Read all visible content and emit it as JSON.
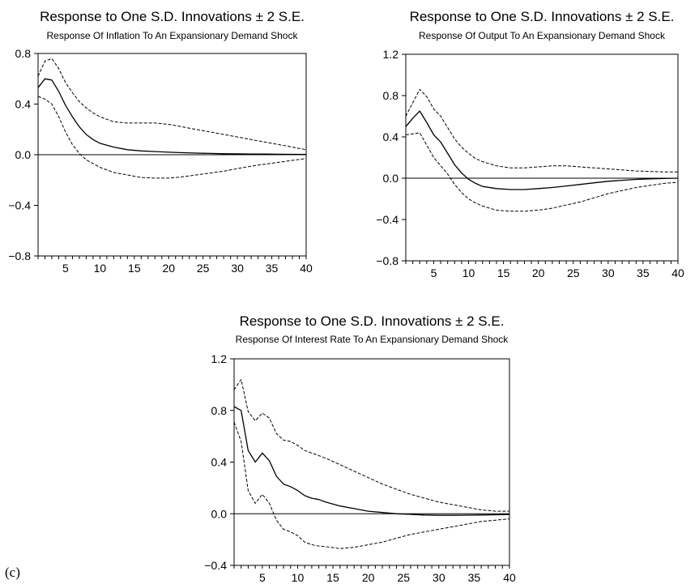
{
  "figure_label": "(c)",
  "chart_data": [
    {
      "type": "line",
      "title": "Response to One S.D. Innovations ± 2 S.E.",
      "subtitle": "Response Of Inflation To An Expansionary Demand Shock",
      "xlim": [
        1,
        40
      ],
      "ylim": [
        -0.8,
        0.8
      ],
      "x_ticks": [
        5,
        10,
        15,
        20,
        25,
        30,
        35,
        40
      ],
      "y_ticks": [
        -0.8,
        -0.4,
        0.0,
        0.4,
        0.8
      ],
      "y_tick_labels": [
        "−0.8",
        "−0.4",
        "0.0",
        "0.4",
        "0.8"
      ],
      "zero_line": true,
      "x": [
        1,
        2,
        3,
        4,
        5,
        6,
        7,
        8,
        9,
        10,
        12,
        14,
        16,
        18,
        20,
        22,
        24,
        26,
        28,
        30,
        32,
        34,
        36,
        38,
        40
      ],
      "series": [
        {
          "style": "dashed",
          "values": [
            0.62,
            0.74,
            0.76,
            0.68,
            0.57,
            0.49,
            0.42,
            0.37,
            0.33,
            0.3,
            0.26,
            0.25,
            0.25,
            0.25,
            0.24,
            0.22,
            0.2,
            0.18,
            0.16,
            0.14,
            0.12,
            0.1,
            0.08,
            0.06,
            0.04
          ]
        },
        {
          "style": "solid",
          "values": [
            0.53,
            0.6,
            0.59,
            0.5,
            0.39,
            0.3,
            0.22,
            0.16,
            0.12,
            0.09,
            0.06,
            0.04,
            0.03,
            0.025,
            0.02,
            0.016,
            0.013,
            0.01,
            0.008,
            0.007,
            0.006,
            0.005,
            0.004,
            0.003,
            0.002
          ]
        },
        {
          "style": "dashed",
          "values": [
            0.46,
            0.44,
            0.4,
            0.3,
            0.18,
            0.08,
            0.01,
            -0.04,
            -0.07,
            -0.1,
            -0.14,
            -0.16,
            -0.18,
            -0.185,
            -0.185,
            -0.175,
            -0.16,
            -0.145,
            -0.13,
            -0.11,
            -0.09,
            -0.075,
            -0.06,
            -0.045,
            -0.03
          ]
        }
      ]
    },
    {
      "type": "line",
      "title": "Response to One S.D. Innovations ± 2 S.E.",
      "subtitle": "Response Of Output To An Expansionary Demand Shock",
      "xlim": [
        1,
        40
      ],
      "ylim": [
        -0.8,
        1.2
      ],
      "x_ticks": [
        5,
        10,
        15,
        20,
        25,
        30,
        35,
        40
      ],
      "y_ticks": [
        -0.8,
        -0.4,
        0.0,
        0.4,
        0.8,
        1.2
      ],
      "y_tick_labels": [
        "−0.8",
        "−0.4",
        "0.0",
        "0.4",
        "0.8",
        "1.2"
      ],
      "zero_line": true,
      "x": [
        1,
        2,
        3,
        4,
        5,
        6,
        7,
        8,
        9,
        10,
        11,
        12,
        14,
        16,
        18,
        20,
        22,
        24,
        26,
        28,
        30,
        32,
        34,
        36,
        38,
        40
      ],
      "series": [
        {
          "style": "dashed",
          "values": [
            0.6,
            0.73,
            0.86,
            0.79,
            0.67,
            0.6,
            0.49,
            0.38,
            0.3,
            0.24,
            0.19,
            0.16,
            0.12,
            0.1,
            0.1,
            0.11,
            0.12,
            0.12,
            0.11,
            0.1,
            0.09,
            0.08,
            0.07,
            0.065,
            0.06,
            0.06
          ]
        },
        {
          "style": "solid",
          "values": [
            0.5,
            0.58,
            0.65,
            0.54,
            0.42,
            0.35,
            0.24,
            0.13,
            0.05,
            -0.01,
            -0.05,
            -0.08,
            -0.1,
            -0.11,
            -0.11,
            -0.1,
            -0.09,
            -0.075,
            -0.06,
            -0.045,
            -0.03,
            -0.02,
            -0.012,
            -0.006,
            -0.003,
            0.0
          ]
        },
        {
          "style": "dashed",
          "values": [
            0.42,
            0.43,
            0.44,
            0.32,
            0.2,
            0.12,
            0.04,
            -0.06,
            -0.14,
            -0.2,
            -0.24,
            -0.27,
            -0.31,
            -0.32,
            -0.32,
            -0.31,
            -0.29,
            -0.26,
            -0.23,
            -0.19,
            -0.15,
            -0.12,
            -0.09,
            -0.07,
            -0.05,
            -0.04
          ]
        }
      ]
    },
    {
      "type": "line",
      "title": "Response to One S.D. Innovations ± 2 S.E.",
      "subtitle": "Response Of Interest Rate To An Expansionary Demand Shock",
      "xlim": [
        1,
        40
      ],
      "ylim": [
        -0.4,
        1.2
      ],
      "x_ticks": [
        5,
        10,
        15,
        20,
        25,
        30,
        35,
        40
      ],
      "y_ticks": [
        -0.4,
        0.0,
        0.4,
        0.8,
        1.2
      ],
      "y_tick_labels": [
        "−0.4",
        "0.0",
        "0.4",
        "0.8",
        "1.2"
      ],
      "zero_line": true,
      "x": [
        1,
        2,
        3,
        4,
        5,
        6,
        7,
        8,
        9,
        10,
        11,
        12,
        13,
        14,
        16,
        18,
        20,
        22,
        24,
        26,
        28,
        30,
        32,
        34,
        36,
        38,
        40
      ],
      "series": [
        {
          "style": "dashed",
          "values": [
            0.96,
            1.04,
            0.79,
            0.72,
            0.78,
            0.74,
            0.62,
            0.57,
            0.56,
            0.53,
            0.49,
            0.47,
            0.45,
            0.43,
            0.38,
            0.33,
            0.28,
            0.23,
            0.19,
            0.15,
            0.12,
            0.09,
            0.07,
            0.05,
            0.03,
            0.02,
            0.02
          ]
        },
        {
          "style": "solid",
          "values": [
            0.83,
            0.8,
            0.49,
            0.4,
            0.47,
            0.41,
            0.29,
            0.23,
            0.21,
            0.18,
            0.14,
            0.12,
            0.11,
            0.09,
            0.06,
            0.04,
            0.02,
            0.01,
            0.0,
            -0.005,
            -0.01,
            -0.012,
            -0.012,
            -0.011,
            -0.01,
            -0.008,
            -0.006
          ]
        },
        {
          "style": "dashed",
          "values": [
            0.71,
            0.56,
            0.18,
            0.08,
            0.15,
            0.08,
            -0.05,
            -0.12,
            -0.14,
            -0.17,
            -0.22,
            -0.24,
            -0.25,
            -0.255,
            -0.27,
            -0.26,
            -0.24,
            -0.22,
            -0.19,
            -0.16,
            -0.14,
            -0.12,
            -0.1,
            -0.08,
            -0.06,
            -0.05,
            -0.04
          ]
        }
      ]
    }
  ]
}
